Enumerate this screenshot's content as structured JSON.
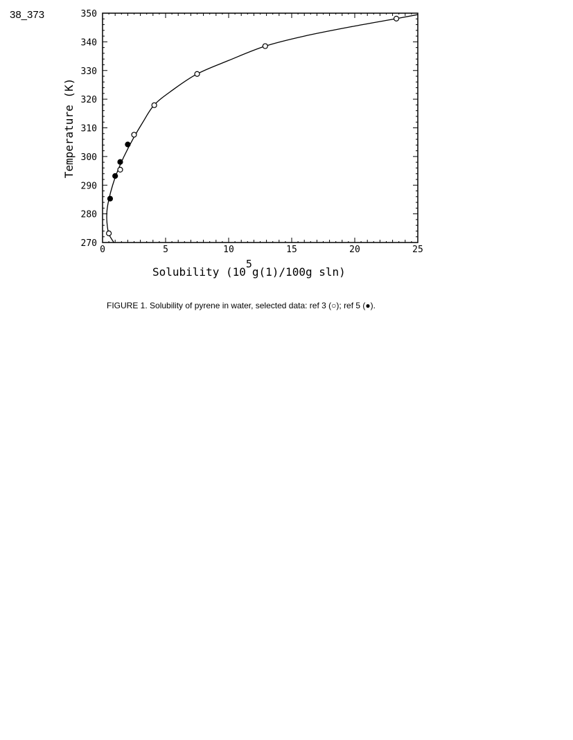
{
  "page_label": "38_373",
  "caption": "FIGURE 1.  Solubility of pyrene in water, selected data: ref 3 (○); ref 5 (●).",
  "chart_data": {
    "type": "scatter",
    "title": "",
    "xlabel": "Solubility (10",
    "xlabel_sup": "5",
    "xlabel_rest": "g(1)/100g sln)",
    "ylabel": "Temperature (K)",
    "xlim": [
      0,
      25
    ],
    "ylim": [
      270,
      350
    ],
    "xticks": [
      0,
      5,
      10,
      15,
      20,
      25
    ],
    "yticks": [
      270,
      280,
      290,
      300,
      310,
      320,
      330,
      340,
      350
    ],
    "grid": false,
    "series": [
      {
        "name": "ref 3",
        "marker": "open-circle",
        "points": [
          [
            0.5,
            273.2
          ],
          [
            1.4,
            295.4
          ],
          [
            2.5,
            307.6
          ],
          [
            4.1,
            317.9
          ],
          [
            7.5,
            328.8
          ],
          [
            12.9,
            338.5
          ],
          [
            23.3,
            348.1
          ]
        ]
      },
      {
        "name": "ref 5",
        "marker": "filled-circle",
        "points": [
          [
            0.6,
            285.3
          ],
          [
            1.0,
            293.2
          ],
          [
            1.4,
            298.1
          ],
          [
            2.0,
            304.2
          ]
        ]
      }
    ],
    "fit_curve": [
      [
        0.9,
        270
      ],
      [
        0.5,
        273
      ],
      [
        0.35,
        277
      ],
      [
        0.35,
        281
      ],
      [
        0.5,
        285
      ],
      [
        0.8,
        290
      ],
      [
        1.2,
        295
      ],
      [
        1.7,
        300
      ],
      [
        2.4,
        306
      ],
      [
        3.2,
        312
      ],
      [
        4.1,
        318
      ],
      [
        5.5,
        323
      ],
      [
        7.5,
        328.8
      ],
      [
        10,
        333.5
      ],
      [
        12.9,
        338.5
      ],
      [
        16,
        342
      ],
      [
        20,
        345.5
      ],
      [
        23.3,
        348.1
      ],
      [
        25,
        349.5
      ]
    ]
  }
}
